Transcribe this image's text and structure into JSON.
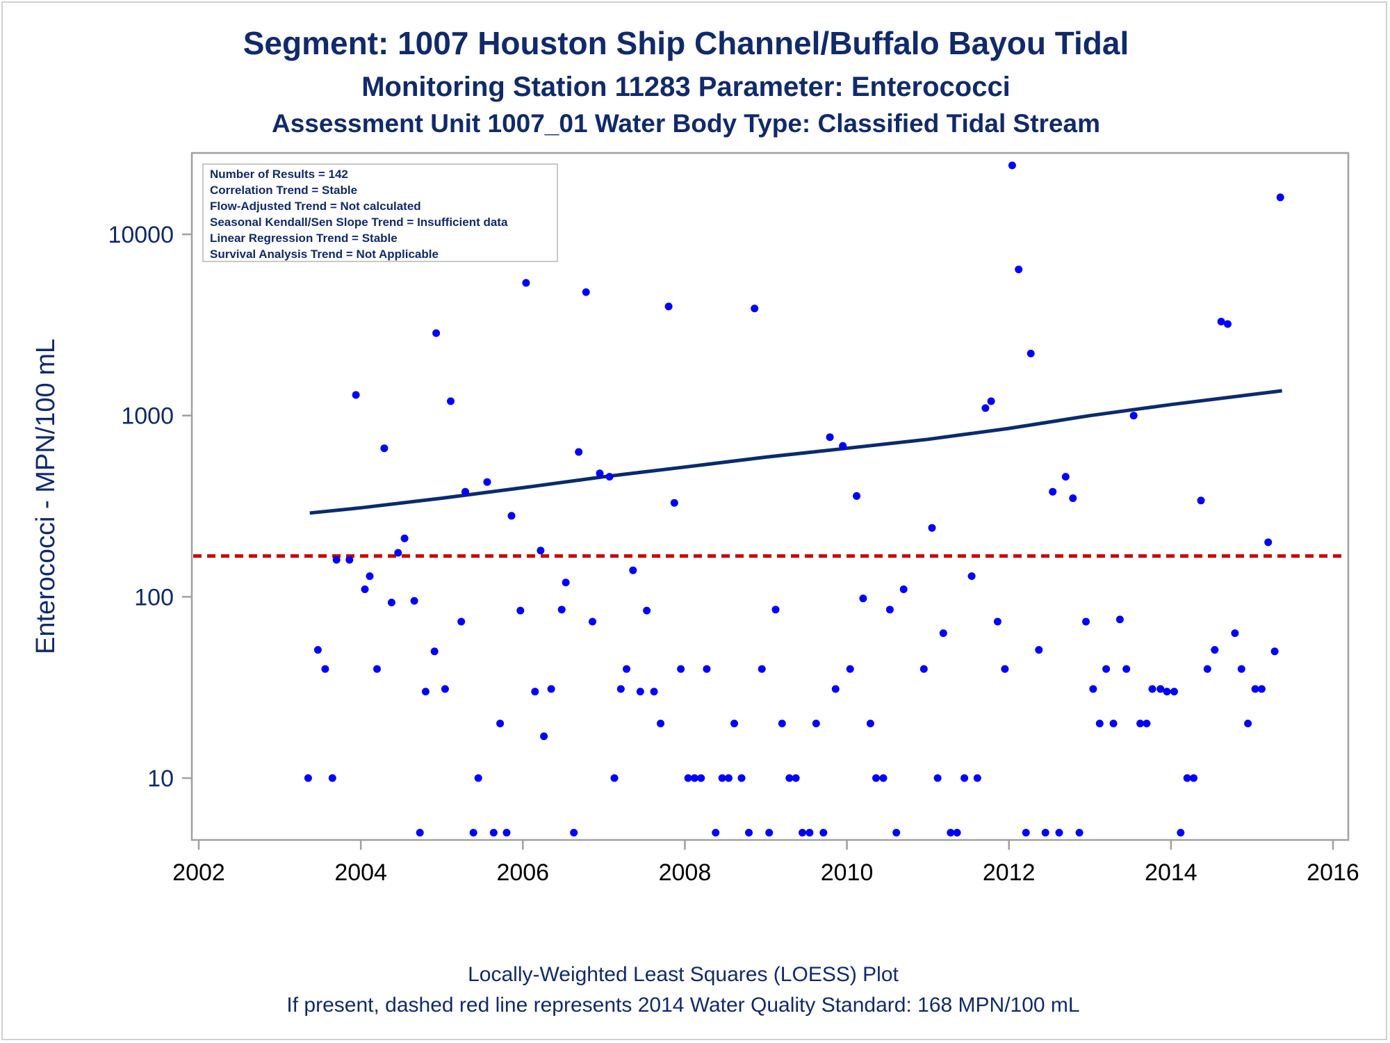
{
  "colors": {
    "text": "#102a6b",
    "points": "#0000ff",
    "loess": "#0a2a70",
    "standard": "#cc0000",
    "axis": "#a0a0a0"
  },
  "chart_data": {
    "type": "scatter",
    "title": "Segment: 1007  Houston Ship Channel/Buffalo Bayou Tidal",
    "subtitle": "Monitoring Station 11283 Parameter: Enterococci",
    "subtitle2": "Assessment Unit 1007_01   Water Body Type: Classified Tidal Stream",
    "xlabel": "",
    "ylabel": "Enterococci - MPN/100 mL",
    "y_scale": "log",
    "xlim": [
      2002,
      2016
    ],
    "ylim": [
      5,
      25000
    ],
    "x_ticks": [
      2002,
      2004,
      2006,
      2008,
      2010,
      2012,
      2014,
      2016
    ],
    "y_ticks": [
      10,
      100,
      1000,
      10000
    ],
    "grid": false,
    "stats_box": [
      "Number of Results = 142",
      "Correlation Trend = Stable",
      "Flow-Adjusted Trend = Not calculated",
      "Seasonal Kendall/Sen Slope Trend = Insufficient data",
      "Linear Regression Trend = Stable",
      "Survival Analysis Trend = Not Applicable"
    ],
    "standard_value": 168,
    "footer": [
      "Locally-Weighted Least Squares (LOESS) Plot",
      "If present, dashed red line represents 2014 Water Quality Standard: 168 MPN/100 mL"
    ],
    "loess": {
      "x": [
        2003.37,
        2004.0,
        2005.0,
        2006.0,
        2007.0,
        2008.0,
        2009.0,
        2010.0,
        2011.0,
        2012.0,
        2013.0,
        2014.0,
        2015.37
      ],
      "y": [
        290,
        310,
        350,
        400,
        460,
        520,
        590,
        660,
        740,
        850,
        1000,
        1150,
        1370
      ]
    },
    "points": {
      "x": [
        2003.35,
        2003.47,
        2003.56,
        2003.65,
        2003.7,
        2003.86,
        2003.94,
        2004.05,
        2004.11,
        2004.2,
        2004.29,
        2004.38,
        2004.46,
        2004.54,
        2004.66,
        2004.73,
        2004.8,
        2004.91,
        2004.93,
        2005.04,
        2005.11,
        2005.24,
        2005.29,
        2005.39,
        2005.45,
        2005.56,
        2005.64,
        2005.72,
        2005.8,
        2005.86,
        2005.97,
        2006.04,
        2006.15,
        2006.22,
        2006.26,
        2006.35,
        2006.48,
        2006.53,
        2006.63,
        2006.69,
        2006.78,
        2006.86,
        2006.95,
        2007.07,
        2007.13,
        2007.21,
        2007.28,
        2007.36,
        2007.45,
        2007.53,
        2007.62,
        2007.7,
        2007.8,
        2007.87,
        2007.95,
        2008.04,
        2008.12,
        2008.2,
        2008.27,
        2008.38,
        2008.46,
        2008.54,
        2008.61,
        2008.7,
        2008.79,
        2008.86,
        2008.95,
        2009.04,
        2009.12,
        2009.2,
        2009.29,
        2009.37,
        2009.45,
        2009.54,
        2009.62,
        2009.71,
        2009.79,
        2009.86,
        2009.95,
        2010.04,
        2010.12,
        2010.2,
        2010.29,
        2010.36,
        2010.45,
        2010.53,
        2010.61,
        2010.7,
        2010.95,
        2011.05,
        2011.12,
        2011.19,
        2011.28,
        2011.36,
        2011.45,
        2011.54,
        2011.61,
        2011.71,
        2011.78,
        2011.86,
        2011.95,
        2012.04,
        2012.12,
        2012.21,
        2012.27,
        2012.37,
        2012.45,
        2012.54,
        2012.62,
        2012.7,
        2012.79,
        2012.87,
        2012.95,
        2013.04,
        2013.12,
        2013.2,
        2013.29,
        2013.37,
        2013.45,
        2013.54,
        2013.62,
        2013.7,
        2013.77,
        2013.87,
        2013.95,
        2014.04,
        2014.12,
        2014.2,
        2014.28,
        2014.37,
        2014.45,
        2014.54,
        2014.62,
        2014.7,
        2014.79,
        2014.87,
        2014.95,
        2015.04,
        2015.12,
        2015.2,
        2015.28,
        2015.35
      ],
      "y": [
        10,
        51,
        40,
        10,
        160,
        160,
        1300,
        110,
        130,
        40,
        660,
        93,
        175,
        210,
        95,
        5,
        30,
        50,
        2850,
        31,
        1200,
        73,
        380,
        5,
        10,
        430,
        5,
        20,
        5,
        280,
        84,
        5400,
        30,
        180,
        17,
        31,
        85,
        120,
        5,
        630,
        4800,
        73,
        480,
        460,
        10,
        31,
        40,
        140,
        30,
        84,
        30,
        20,
        4000,
        330,
        40,
        10,
        10,
        10,
        40,
        5,
        10,
        10,
        20,
        10,
        5,
        3900,
        40,
        5,
        85,
        20,
        10,
        10,
        5,
        5,
        20,
        5,
        760,
        31,
        680,
        40,
        360,
        98,
        20,
        10,
        10,
        85,
        5,
        110,
        40,
        240,
        10,
        63,
        5,
        5,
        10,
        130,
        10,
        1100,
        1200,
        73,
        40,
        24000,
        6400,
        5,
        2200,
        51,
        5,
        380,
        5,
        460,
        350,
        5,
        73,
        31,
        20,
        40,
        20,
        75,
        40,
        1000,
        20,
        20,
        31,
        31,
        30,
        30,
        5,
        10,
        10,
        340,
        40,
        51,
        3300,
        3200,
        63,
        40,
        20,
        31,
        31,
        200,
        50,
        16000
      ]
    }
  }
}
